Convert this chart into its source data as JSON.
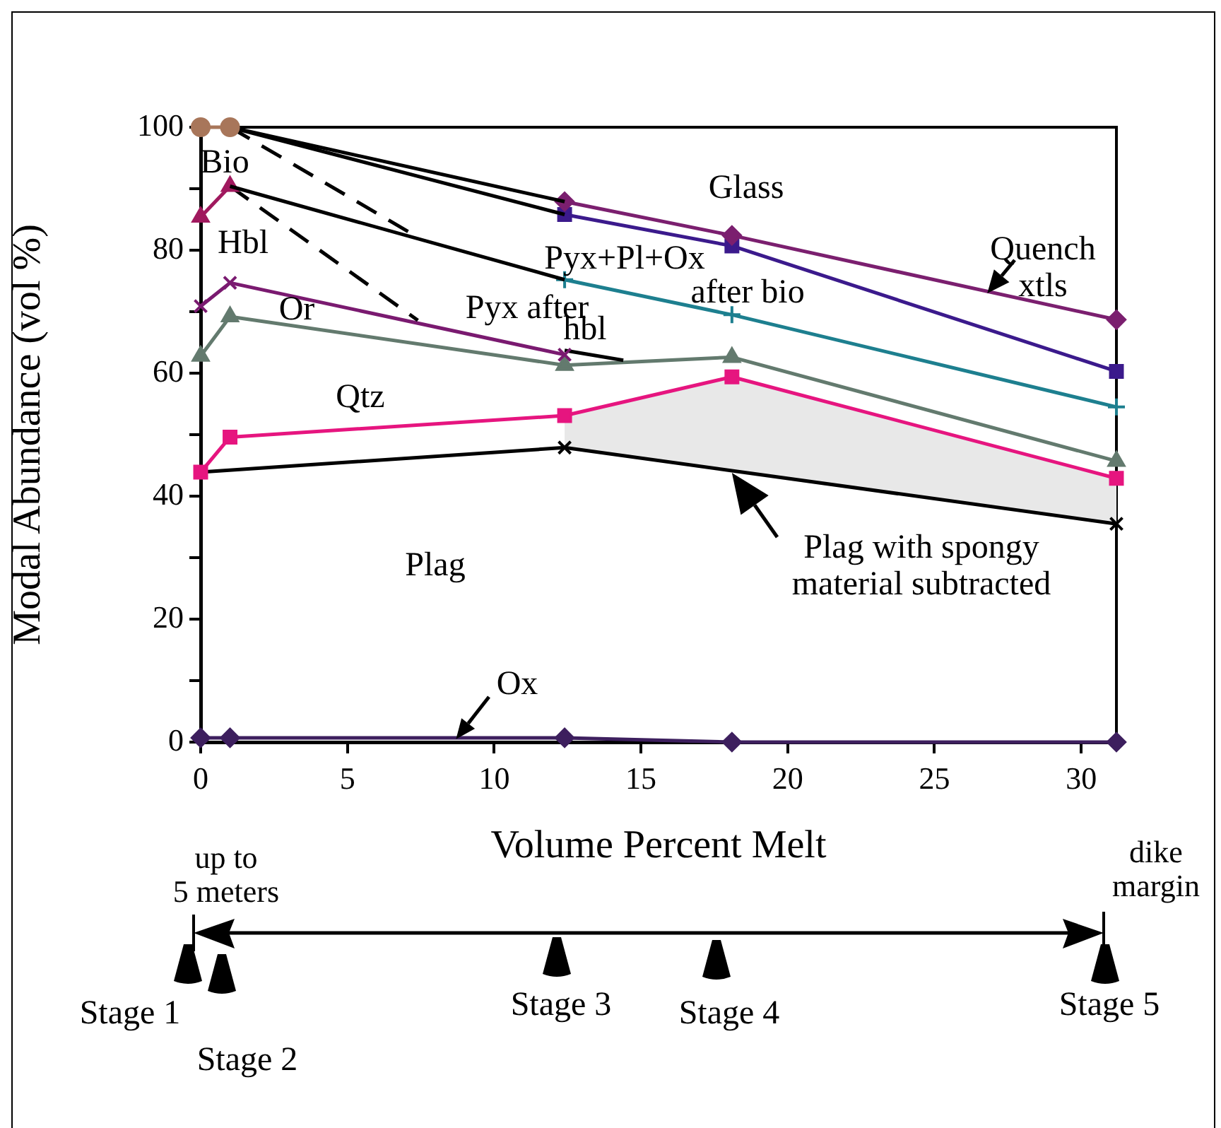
{
  "chart_data": {
    "type": "line",
    "xlabel": "Volume Percent Melt",
    "ylabel": "Modal Abundance (vol %)",
    "xlim": [
      0,
      31.2
    ],
    "xticks": [
      0,
      5,
      10,
      15,
      20,
      25,
      30
    ],
    "ylim": [
      0,
      100
    ],
    "yticks": [
      0,
      {
        "value": 10,
        "label": null
      },
      20,
      {
        "value": 30,
        "label": null
      },
      40,
      {
        "value": 50,
        "label": null
      },
      60,
      {
        "value": 70,
        "label": null
      },
      80,
      {
        "value": 90,
        "label": null
      },
      100
    ],
    "grid": false,
    "legend": false,
    "series": [
      {
        "color": "#a8765a",
        "marker": "circle",
        "x": [
          0,
          1
        ],
        "values": [
          100,
          100
        ]
      },
      {
        "color": "#000000",
        "marker": "none",
        "x": [
          1,
          12.4
        ],
        "values": [
          100,
          87.9
        ]
      },
      {
        "color": "#000000",
        "marker": "none",
        "x": [
          1,
          12.4
        ],
        "values": [
          100,
          85.8
        ]
      },
      {
        "color": "#7b1f6f",
        "marker": "diamond",
        "x": [
          12.4,
          18.1,
          31.2
        ],
        "values": [
          87.9,
          82.4,
          68.7
        ]
      },
      {
        "color": "#3b1a8c",
        "marker": "square",
        "x": [
          12.4,
          18.1,
          31.2
        ],
        "values": [
          85.8,
          80.7,
          60.3
        ]
      },
      {
        "color": "#000000",
        "marker": "none",
        "x": [
          1,
          12.4
        ],
        "values": [
          90.4,
          75.2
        ]
      },
      {
        "color": "#1d7f8f",
        "marker": "plus",
        "x": [
          12.4,
          18.1,
          31.2
        ],
        "values": [
          75.2,
          69.5,
          54.5
        ]
      },
      {
        "color": "#a0195e",
        "marker": "triangle",
        "x": [
          0,
          1
        ],
        "values": [
          85.4,
          90.4
        ]
      },
      {
        "color": "#000000",
        "marker": "none",
        "line_style": "dashed",
        "x": [
          1,
          7.4
        ],
        "values": [
          100,
          82.1
        ]
      },
      {
        "color": "#000000",
        "marker": "none",
        "line_style": "dashed",
        "x": [
          1,
          7.4
        ],
        "values": [
          90.4,
          68.6
        ]
      },
      {
        "color": "#7a1a70",
        "marker": "cross",
        "x": [
          0,
          1,
          12.4
        ],
        "values": [
          70.9,
          74.7,
          63.0
        ]
      },
      {
        "color": "#000000",
        "marker": "none",
        "x": [
          12.4,
          14.4
        ],
        "values": [
          63.7,
          62.1
        ]
      },
      {
        "color": "#637a6e",
        "marker": "triangle",
        "x": [
          0,
          1,
          12.4,
          18.1,
          31.2
        ],
        "values": [
          62.8,
          69.2,
          61.3,
          62.6,
          45.7
        ]
      },
      {
        "color": "#e6157f",
        "marker": "square",
        "x": [
          0,
          1,
          12.4,
          18.1,
          31.2
        ],
        "values": [
          43.9,
          49.6,
          53.1,
          59.4,
          42.9
        ],
        "lower": [
          null,
          null,
          47.9,
          43.8,
          35.5
        ],
        "upper": [
          null,
          null,
          53.1,
          59.4,
          42.9
        ]
      },
      {
        "color": "#000000",
        "marker": "cross",
        "x": [
          0,
          12.4,
          31.2
        ],
        "values": [
          43.9,
          47.9,
          35.5
        ]
      },
      {
        "color": "#3d1f5e",
        "marker": "diamond",
        "x": [
          0,
          1,
          12.4,
          18.1,
          31.2
        ],
        "values": [
          0.7,
          0.7,
          0.7,
          0,
          0
        ]
      }
    ],
    "annotations": [
      "Glass",
      "Bio",
      "Hbl",
      "Or",
      "Qtz",
      "Plag",
      {
        "text": "Ox",
        "x": 8.7,
        "y": 0.5
      },
      "Pyx+Pl+Ox",
      "after bio",
      "Pyx after",
      "hbl",
      {
        "text": "Quench\nxtls",
        "x": 26.8,
        "y": 73
      },
      {
        "text": "Plag with spongy\nmaterial subtracted",
        "x": 18.1,
        "y": 43.8
      },
      "up to\n5 meters",
      "dike\nmargin",
      "Stage 1",
      "Stage 2",
      "Stage 3",
      "Stage 4",
      "Stage 5"
    ]
  }
}
